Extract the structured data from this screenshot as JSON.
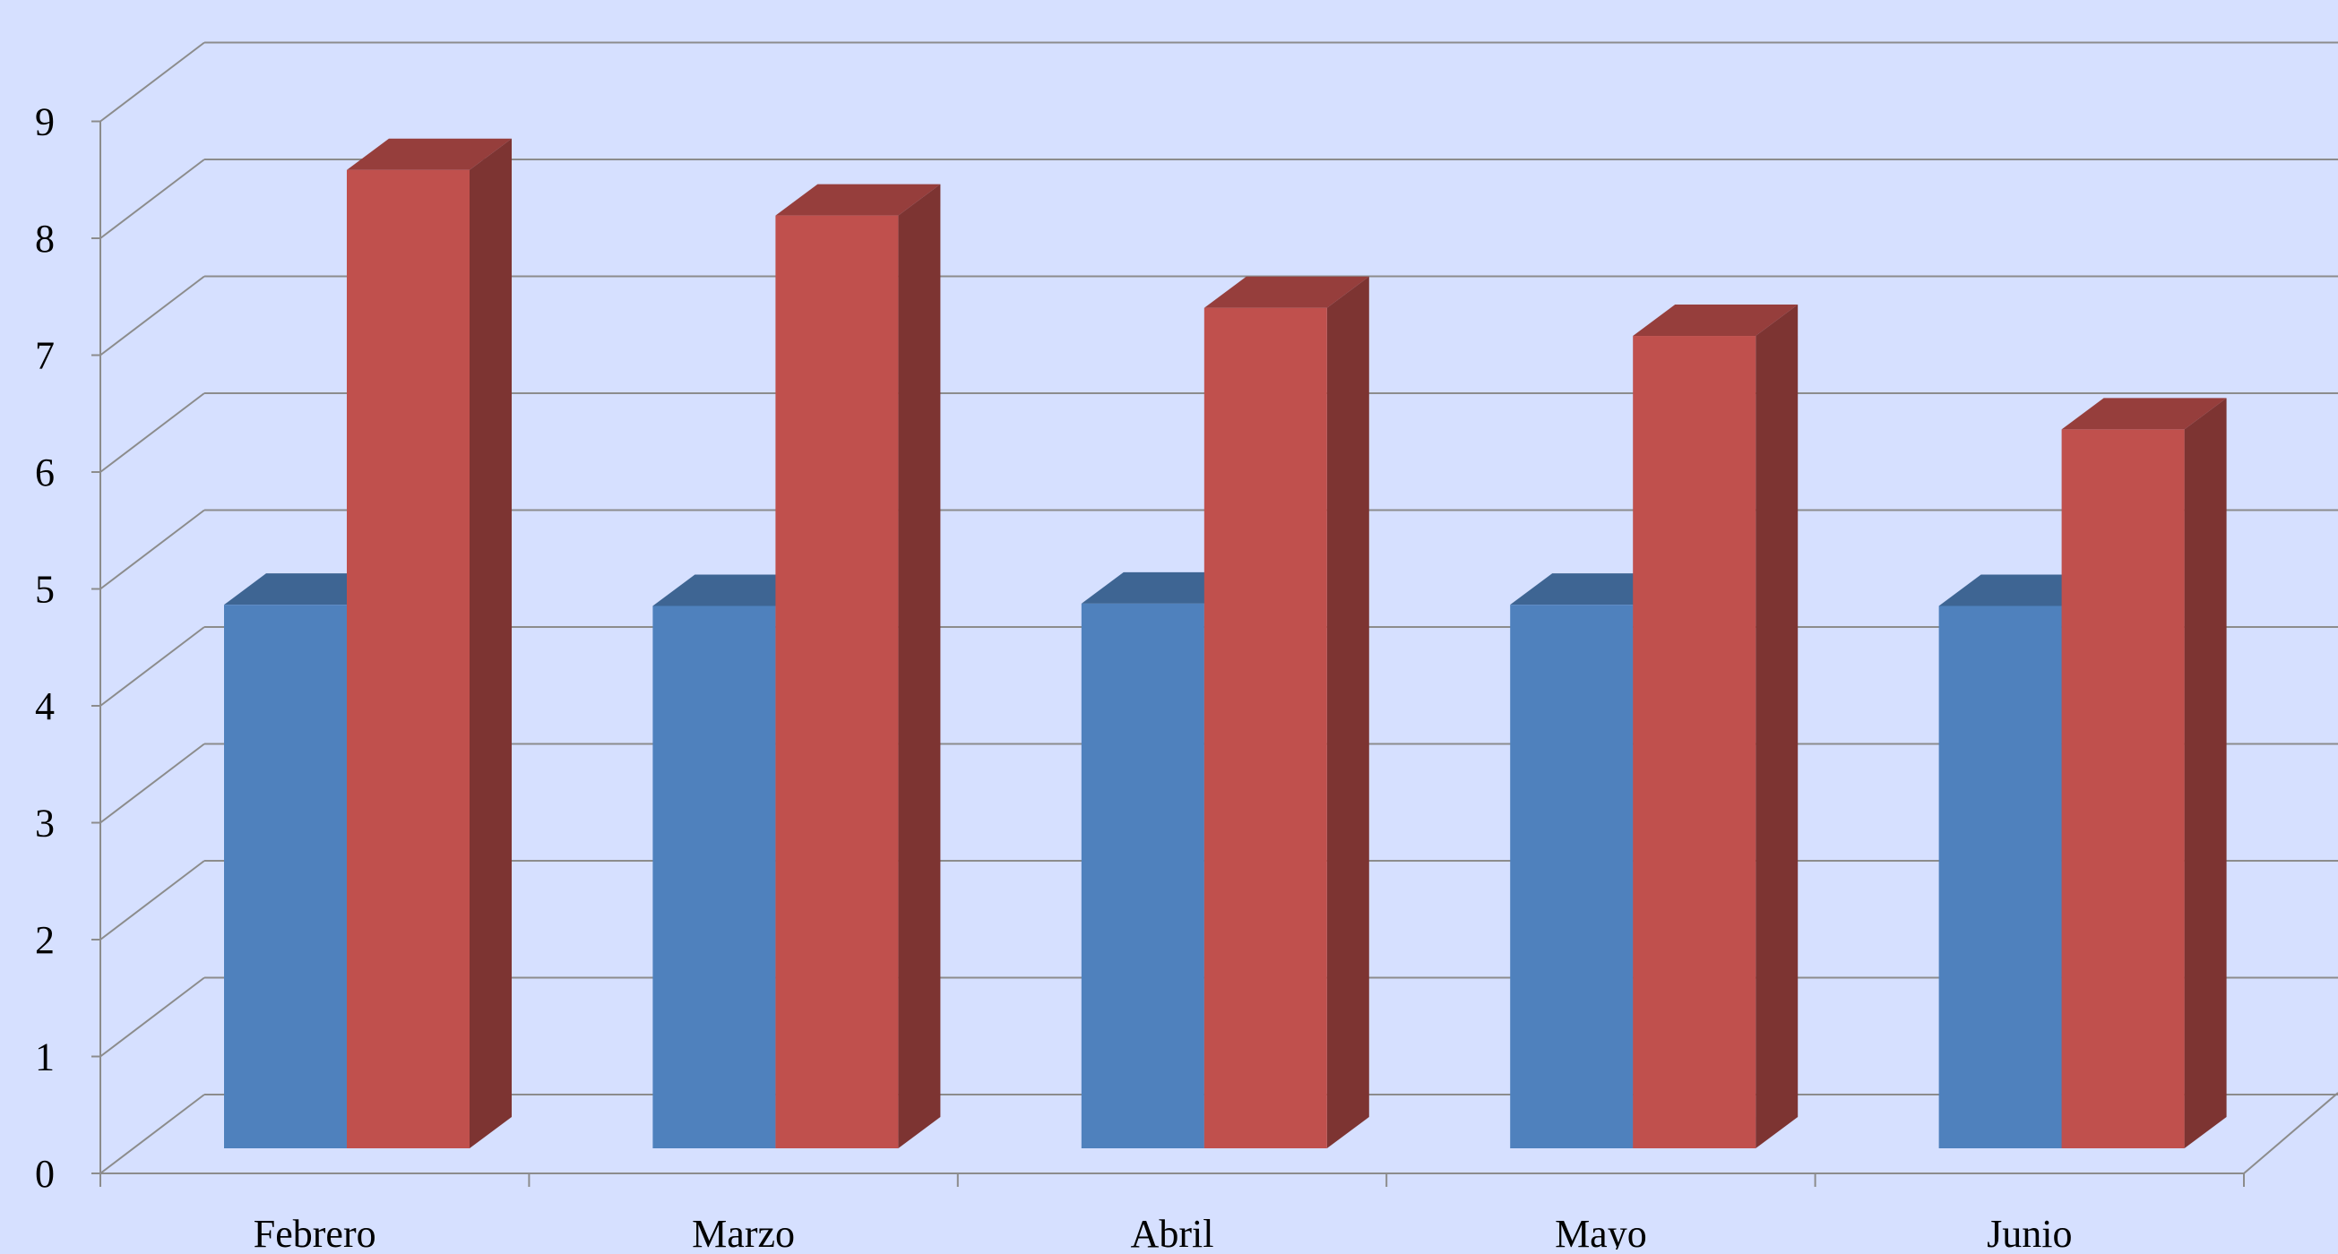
{
  "chart_data": {
    "type": "bar",
    "style": "3d-clustered-column",
    "categories": [
      "Febrero",
      "Marzo",
      "Abril",
      "Mayo",
      "Junio"
    ],
    "series": [
      {
        "color": "#4f81bd",
        "values": [
          4.65,
          4.64,
          4.66,
          4.65,
          4.64
        ]
      },
      {
        "color": "#c0504d",
        "values": [
          8.37,
          7.98,
          7.19,
          6.95,
          6.15
        ]
      }
    ],
    "title": "",
    "xlabel": "",
    "ylabel": "",
    "yticks": [
      "0",
      "1",
      "2",
      "3",
      "4",
      "5",
      "6",
      "7",
      "8",
      "9"
    ],
    "ylim": [
      0,
      9
    ],
    "grid": true,
    "legend": "none",
    "background_color": "#d6e0ff",
    "gridline_color": "#8c8c8c"
  }
}
